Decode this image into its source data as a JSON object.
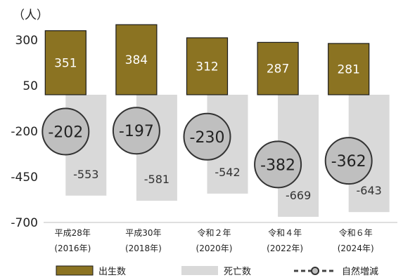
{
  "chart_data": {
    "type": "bar",
    "unit_label": "（人）",
    "categories": [
      {
        "era": "平成28年",
        "year": "(2016年)"
      },
      {
        "era": "平成30年",
        "year": "(2018年)"
      },
      {
        "era": "令和２年",
        "year": "(2020年)"
      },
      {
        "era": "令和４年",
        "year": "(2022年)"
      },
      {
        "era": "令和６年",
        "year": "(2024年)"
      }
    ],
    "y_ticks": [
      300,
      50,
      -200,
      -450,
      -700
    ],
    "ylim": [
      -700,
      400
    ],
    "series": [
      {
        "name": "出生数",
        "values": [
          351,
          384,
          312,
          287,
          281
        ],
        "color": "#8b7322"
      },
      {
        "name": "死亡数",
        "values": [
          -553,
          -581,
          -542,
          -669,
          -643
        ],
        "color": "#d9d9d9"
      },
      {
        "name": "自然増減",
        "values": [
          -202,
          -197,
          -230,
          -382,
          -362
        ],
        "color": "#bfbfbf",
        "line_color": "#444444"
      }
    ],
    "labels": {
      "births": [
        "351",
        "384",
        "312",
        "287",
        "281"
      ],
      "deaths": [
        "-553",
        "-581",
        "-542",
        "-669",
        "-643"
      ],
      "net": [
        "-202",
        "-197",
        "-230",
        "-382",
        "-362"
      ]
    },
    "legend": [
      "出生数",
      "死亡数",
      "自然増減"
    ],
    "legend_position": "bottom"
  }
}
